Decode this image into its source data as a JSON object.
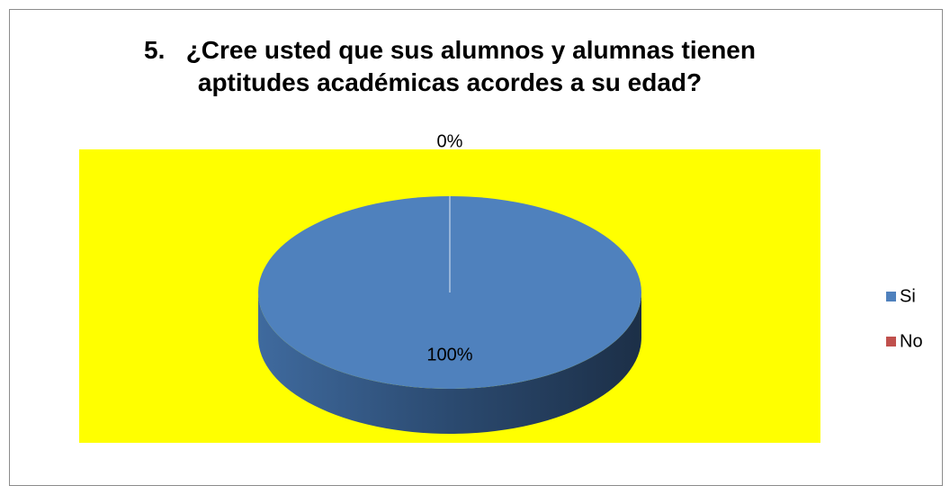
{
  "chart_data": {
    "type": "pie",
    "title": "5.   ¿Cree usted que sus alumnos y alumnas tienen aptitudes académicas acordes a su edad?",
    "categories": [
      "Si",
      "No"
    ],
    "values": [
      100,
      0
    ],
    "value_labels": [
      "100%",
      "0%"
    ],
    "colors": [
      "#4f81bd",
      "#c0504d"
    ],
    "plot_background": "#ffff00",
    "legend": "right"
  }
}
